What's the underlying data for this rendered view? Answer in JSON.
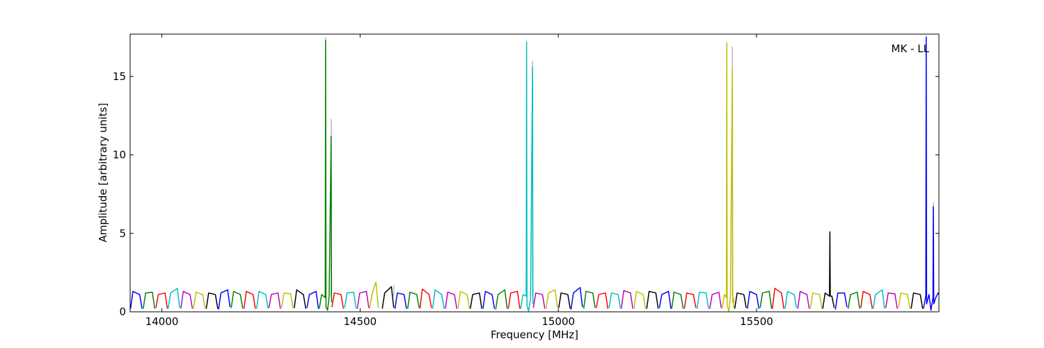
{
  "chart_data": {
    "type": "line",
    "annotation": "MK - LL",
    "xlabel": "Frequency [MHz]",
    "ylabel": "Amplitude [arbitrary units]",
    "xlim": [
      13920,
      15960
    ],
    "ylim": [
      0,
      17.7
    ],
    "xticks": [
      14000,
      14500,
      15000,
      15500
    ],
    "yticks": [
      0,
      5,
      10,
      15
    ],
    "grid": false,
    "series": [
      {
        "color": "#bbbbbb",
        "x": [
          14413,
          14413,
          null,
          14427,
          14427,
          null,
          14585,
          14585,
          null,
          14935,
          14935,
          null,
          15425,
          15425,
          null,
          15439,
          15439,
          null,
          15928,
          15928,
          null,
          15946,
          15946
        ],
        "values": [
          1.0,
          17.5,
          null,
          1.0,
          12.3,
          null,
          1.0,
          1.7,
          null,
          1.0,
          16.0,
          null,
          1.0,
          17.2,
          null,
          1.0,
          16.9,
          null,
          1.0,
          17.6,
          null,
          1.0,
          7.0
        ]
      },
      {
        "color": "#0000ff",
        "x": [
          13921,
          13927,
          13944,
          13950,
          null,
          14143,
          14149,
          14166,
          14172,
          null,
          14366,
          14372,
          14389,
          14395,
          null,
          14588,
          14594,
          14611,
          14617,
          null,
          14810,
          14816,
          14833,
          14839,
          null,
          15032,
          15038,
          15055,
          15061,
          null,
          15255,
          15261,
          15278,
          15284,
          null,
          15477,
          15483,
          15500,
          15506,
          null,
          15699,
          15705,
          15722,
          15728,
          null,
          15921,
          15927,
          15928,
          15929,
          15935,
          15940,
          15945,
          15946,
          15947,
          15952,
          15958,
          15960
        ],
        "values": [
          0.2,
          1.3,
          1.1,
          0.2,
          null,
          0.15,
          1.2,
          1.4,
          0.3,
          null,
          0.25,
          1.1,
          1.3,
          0.2,
          null,
          0.2,
          1.2,
          1.1,
          0.2,
          null,
          0.2,
          1.3,
          1.1,
          0.2,
          null,
          0.15,
          1.2,
          1.55,
          0.3,
          null,
          0.25,
          1.1,
          1.3,
          0.2,
          null,
          0.2,
          1.3,
          1.1,
          0.2,
          null,
          0.15,
          1.2,
          1.2,
          0.3,
          null,
          0.2,
          1.0,
          17.5,
          0.5,
          1.1,
          0.1,
          0.9,
          6.7,
          0.5,
          0.9,
          1.2,
          1.1
        ]
      },
      {
        "color": "#008000",
        "x": [
          13953,
          13959,
          13976,
          13982,
          null,
          14175,
          14181,
          14198,
          14204,
          null,
          14397,
          14403,
          14412,
          14413,
          14414,
          14418,
          14422,
          14427,
          14428,
          null,
          14620,
          14626,
          14643,
          14649,
          null,
          14842,
          14848,
          14865,
          14871,
          null,
          15064,
          15070,
          15087,
          15093,
          null,
          15286,
          15292,
          15309,
          15315,
          null,
          15509,
          15515,
          15532,
          15538,
          null,
          15731,
          15737,
          15754,
          15760
        ],
        "values": [
          0.2,
          1.2,
          1.25,
          0.2,
          null,
          0.25,
          1.3,
          1.1,
          0.2,
          null,
          0.2,
          1.1,
          0.9,
          17.3,
          0.3,
          0.1,
          1.0,
          11.2,
          0.6,
          null,
          0.2,
          1.25,
          1.1,
          0.25,
          null,
          0.15,
          1.1,
          1.4,
          0.2,
          null,
          0.2,
          1.3,
          1.2,
          0.25,
          null,
          0.2,
          1.25,
          1.1,
          0.2,
          null,
          0.25,
          1.2,
          1.3,
          0.2,
          null,
          0.2,
          1.1,
          1.25,
          0.2
        ]
      },
      {
        "color": "#ff0000",
        "x": [
          13985,
          13991,
          14008,
          14014,
          null,
          14207,
          14213,
          14230,
          14236,
          null,
          14429,
          14435,
          14452,
          14458,
          null,
          14651,
          14657,
          14674,
          14680,
          null,
          14874,
          14880,
          14897,
          14903,
          null,
          15096,
          15102,
          15119,
          15125,
          null,
          15318,
          15324,
          15341,
          15347,
          null,
          15540,
          15546,
          15563,
          15569,
          null,
          15763,
          15769,
          15786,
          15792
        ],
        "values": [
          0.25,
          1.1,
          1.2,
          0.2,
          null,
          0.2,
          1.3,
          1.1,
          0.2,
          null,
          0.3,
          1.2,
          1.1,
          0.2,
          null,
          0.2,
          1.45,
          1.1,
          0.25,
          null,
          0.2,
          1.2,
          1.3,
          0.2,
          null,
          0.25,
          1.1,
          1.2,
          0.2,
          null,
          0.2,
          1.2,
          1.1,
          0.25,
          null,
          0.2,
          1.5,
          1.2,
          0.2,
          null,
          0.25,
          1.3,
          1.1,
          0.2
        ]
      },
      {
        "color": "#00bfbf",
        "x": [
          14016,
          14022,
          14039,
          14045,
          null,
          14239,
          14245,
          14262,
          14268,
          null,
          14461,
          14467,
          14484,
          14490,
          null,
          14683,
          14689,
          14706,
          14712,
          null,
          14905,
          14911,
          14919,
          14920,
          14921,
          14925,
          14930,
          14935,
          14936,
          null,
          15128,
          15134,
          15151,
          15157,
          null,
          15350,
          15356,
          15373,
          15379,
          null,
          15572,
          15578,
          15595,
          15601,
          null,
          15794,
          15800,
          15817,
          15823
        ],
        "values": [
          0.2,
          1.2,
          1.5,
          0.25,
          null,
          0.2,
          1.3,
          1.1,
          0.2,
          null,
          0.25,
          1.2,
          1.25,
          0.2,
          null,
          0.2,
          1.4,
          1.1,
          0.2,
          null,
          0.2,
          1.1,
          1.0,
          17.2,
          0.4,
          0.05,
          0.8,
          15.6,
          0.5,
          null,
          0.25,
          1.2,
          1.1,
          0.2,
          null,
          0.2,
          1.25,
          1.2,
          0.2,
          null,
          0.2,
          1.3,
          1.1,
          0.25,
          null,
          0.2,
          1.1,
          1.4,
          0.2
        ]
      },
      {
        "color": "#bf00bf",
        "x": [
          14048,
          14054,
          14071,
          14077,
          null,
          14270,
          14276,
          14293,
          14299,
          null,
          14493,
          14499,
          14516,
          14522,
          null,
          14715,
          14721,
          14738,
          14744,
          null,
          14937,
          14943,
          14960,
          14966,
          null,
          15159,
          15165,
          15182,
          15188,
          null,
          15382,
          15388,
          15405,
          15411,
          null,
          15604,
          15610,
          15627,
          15633,
          null,
          15826,
          15832,
          15849,
          15855
        ],
        "values": [
          0.2,
          1.3,
          1.1,
          0.2,
          null,
          0.25,
          1.1,
          1.2,
          0.2,
          null,
          0.2,
          1.2,
          1.3,
          0.25,
          null,
          0.2,
          1.25,
          1.1,
          0.2,
          null,
          0.25,
          1.2,
          1.1,
          0.2,
          null,
          0.2,
          1.35,
          1.2,
          0.2,
          null,
          0.2,
          1.1,
          1.25,
          0.25,
          null,
          0.2,
          1.3,
          1.1,
          0.2,
          null,
          0.25,
          1.2,
          1.15,
          0.2
        ]
      },
      {
        "color": "#bfbf00",
        "x": [
          14080,
          14086,
          14103,
          14109,
          null,
          14302,
          14308,
          14325,
          14331,
          null,
          14524,
          14530,
          14540,
          14546,
          null,
          14747,
          14753,
          14770,
          14776,
          null,
          14969,
          14975,
          14992,
          14998,
          null,
          15191,
          15197,
          15214,
          15220,
          null,
          15413,
          15419,
          15424,
          15425,
          15426,
          15430,
          15434,
          15439,
          15440,
          15442,
          15443,
          null,
          15636,
          15642,
          15659,
          15665,
          null,
          15858,
          15864,
          15881,
          15887
        ],
        "values": [
          0.2,
          1.25,
          1.1,
          0.2,
          null,
          0.25,
          1.2,
          1.15,
          0.2,
          null,
          0.2,
          1.1,
          1.9,
          0.25,
          null,
          0.2,
          1.3,
          1.1,
          0.2,
          null,
          0.2,
          1.2,
          1.4,
          0.25,
          null,
          0.2,
          1.3,
          1.1,
          0.2,
          null,
          0.2,
          1.1,
          0.9,
          17.1,
          0.4,
          0.05,
          0.9,
          15.5,
          0.6,
          0.9,
          0.25,
          null,
          0.2,
          1.2,
          1.1,
          0.2,
          null,
          0.25,
          1.2,
          1.1,
          0.2
        ]
      },
      {
        "color": "#000000",
        "x": [
          14112,
          14118,
          14135,
          14141,
          null,
          14334,
          14340,
          14357,
          14363,
          null,
          14556,
          14562,
          14579,
          14585,
          null,
          14778,
          14784,
          14801,
          14807,
          null,
          15001,
          15007,
          15024,
          15030,
          null,
          15223,
          15229,
          15246,
          15252,
          null,
          15445,
          15451,
          15468,
          15474,
          null,
          15667,
          15673,
          15684,
          15685,
          15686,
          15690,
          15696,
          null,
          15890,
          15896,
          15913,
          15919
        ],
        "values": [
          0.2,
          1.2,
          1.1,
          0.2,
          null,
          0.25,
          1.4,
          1.1,
          0.2,
          null,
          0.2,
          1.2,
          1.6,
          0.25,
          null,
          0.2,
          1.1,
          1.2,
          0.2,
          null,
          0.25,
          1.2,
          1.1,
          0.2,
          null,
          0.2,
          1.3,
          1.2,
          0.2,
          null,
          0.2,
          1.2,
          1.1,
          0.25,
          null,
          0.2,
          1.2,
          1.0,
          5.1,
          1.0,
          1.0,
          0.25,
          null,
          0.2,
          1.2,
          1.1,
          0.2
        ]
      }
    ]
  }
}
